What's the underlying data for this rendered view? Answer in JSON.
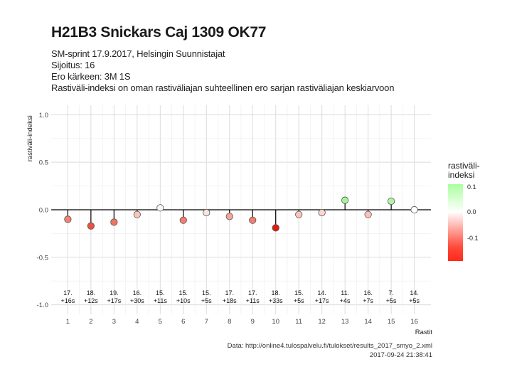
{
  "title": "H21B3 Snickars Caj 1309 OK77",
  "subtitle_lines": [
    "SM-sprint 17.9.2017, Helsingin Suunnistajat",
    "Sijoitus: 16",
    "Ero kärkeen: 3M 1S",
    "Rastiväli-indeksi on oman rastiväliajan suhteellinen ero sarjan rastiväliajan keskiarvoon"
  ],
  "caption_lines": [
    "Data: http://online4.tulospalvelu.fi/tulokset/results_2017_smyo_2.xml",
    "2017-09-24 21:38:41"
  ],
  "legend": {
    "title_lines": [
      "rastiväli-",
      "indeksi"
    ],
    "ticks": [
      {
        "label": "0.1",
        "value": 0.1
      },
      {
        "label": "0.0",
        "value": 0.0
      },
      {
        "label": "-0.1",
        "value": -0.1
      }
    ]
  },
  "chart_data": {
    "type": "lollipop",
    "xlabel": "Rastit",
    "ylabel": "rastiväli-indeksi",
    "ylim": [
      -1.0,
      1.0
    ],
    "yticks": [
      "1.0",
      "0.5",
      "0.0",
      "-0.5",
      "-1.0"
    ],
    "ytick_values": [
      1.0,
      0.5,
      0.0,
      -0.5,
      -1.0
    ],
    "grid": true,
    "legend_position": "right",
    "points": [
      {
        "x": 1,
        "y": -0.1,
        "place": "17.",
        "diff": "+16s",
        "color": "#f3826f"
      },
      {
        "x": 2,
        "y": -0.17,
        "place": "18.",
        "diff": "+12s",
        "color": "#ee5040"
      },
      {
        "x": 3,
        "y": -0.13,
        "place": "19.",
        "diff": "+17s",
        "color": "#f07463"
      },
      {
        "x": 4,
        "y": -0.05,
        "place": "16.",
        "diff": "+30s",
        "color": "#f9c4b9"
      },
      {
        "x": 5,
        "y": 0.02,
        "place": "15.",
        "diff": "+11s",
        "color": "#eefdeb"
      },
      {
        "x": 6,
        "y": -0.11,
        "place": "15.",
        "diff": "+10s",
        "color": "#f27e6c"
      },
      {
        "x": 7,
        "y": -0.03,
        "place": "15.",
        "diff": "+5s",
        "color": "#fbe3de"
      },
      {
        "x": 8,
        "y": -0.07,
        "place": "17.",
        "diff": "+18s",
        "color": "#f7a596"
      },
      {
        "x": 9,
        "y": -0.11,
        "place": "17.",
        "diff": "+11s",
        "color": "#f27e6c"
      },
      {
        "x": 10,
        "y": -0.19,
        "place": "18.",
        "diff": "+33s",
        "color": "#e41a10"
      },
      {
        "x": 11,
        "y": -0.05,
        "place": "15.",
        "diff": "+5s",
        "color": "#f9c4b9"
      },
      {
        "x": 12,
        "y": -0.03,
        "place": "14.",
        "diff": "+17s",
        "color": "#fbd7d0"
      },
      {
        "x": 13,
        "y": 0.1,
        "place": "11.",
        "diff": "+4s",
        "color": "#a6f398"
      },
      {
        "x": 14,
        "y": -0.05,
        "place": "16.",
        "diff": "+7s",
        "color": "#f9c4b9"
      },
      {
        "x": 15,
        "y": 0.09,
        "place": "7.",
        "diff": "+5s",
        "color": "#b0f5a4"
      },
      {
        "x": 16,
        "y": 0.0,
        "place": "14.",
        "diff": "+5s",
        "color": "#ffffff"
      }
    ]
  }
}
